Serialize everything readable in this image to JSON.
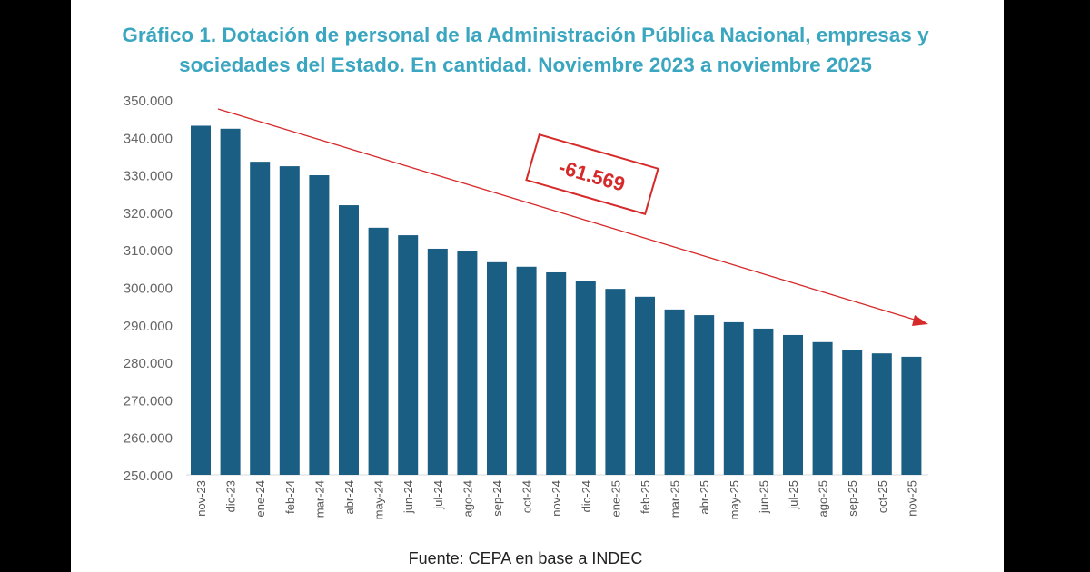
{
  "colors": {
    "bars": "#1a5e83",
    "title": "#3aa6c0",
    "annotation": "#d62a2a",
    "axis_text": "#666666"
  },
  "chart_data": {
    "type": "bar",
    "title_line1": "Gráfico 1. Dotación de personal de la Administración Pública Nacional, empresas y",
    "title_line2": "sociedades del Estado. En cantidad. Noviembre 2023 a noviembre 2025",
    "source": "Fuente: CEPA en base a INDEC",
    "categories": [
      "nov-23",
      "dic-23",
      "ene-24",
      "feb-24",
      "mar-24",
      "abr-24",
      "may-24",
      "jun-24",
      "jul-24",
      "ago-24",
      "sep-24",
      "oct-24",
      "nov-24",
      "dic-24",
      "ene-25",
      "feb-25",
      "mar-25",
      "abr-25",
      "may-25",
      "jun-25",
      "jul-25",
      "ago-25",
      "sep-25",
      "oct-25",
      "nov-25"
    ],
    "values": [
      343100,
      342300,
      333500,
      332300,
      329900,
      321900,
      315900,
      313900,
      310300,
      309600,
      306700,
      305500,
      304000,
      301600,
      299600,
      297500,
      294100,
      292600,
      290700,
      289000,
      287300,
      285400,
      283200,
      282400,
      281500
    ],
    "ylim": [
      250000,
      350000
    ],
    "yticks": [
      "250.000",
      "260.000",
      "270.000",
      "280.000",
      "290.000",
      "300.000",
      "310.000",
      "320.000",
      "330.000",
      "340.000",
      "350.000"
    ],
    "grid": false,
    "annotation": {
      "text": "-61.569",
      "type": "trend-arrow"
    }
  }
}
